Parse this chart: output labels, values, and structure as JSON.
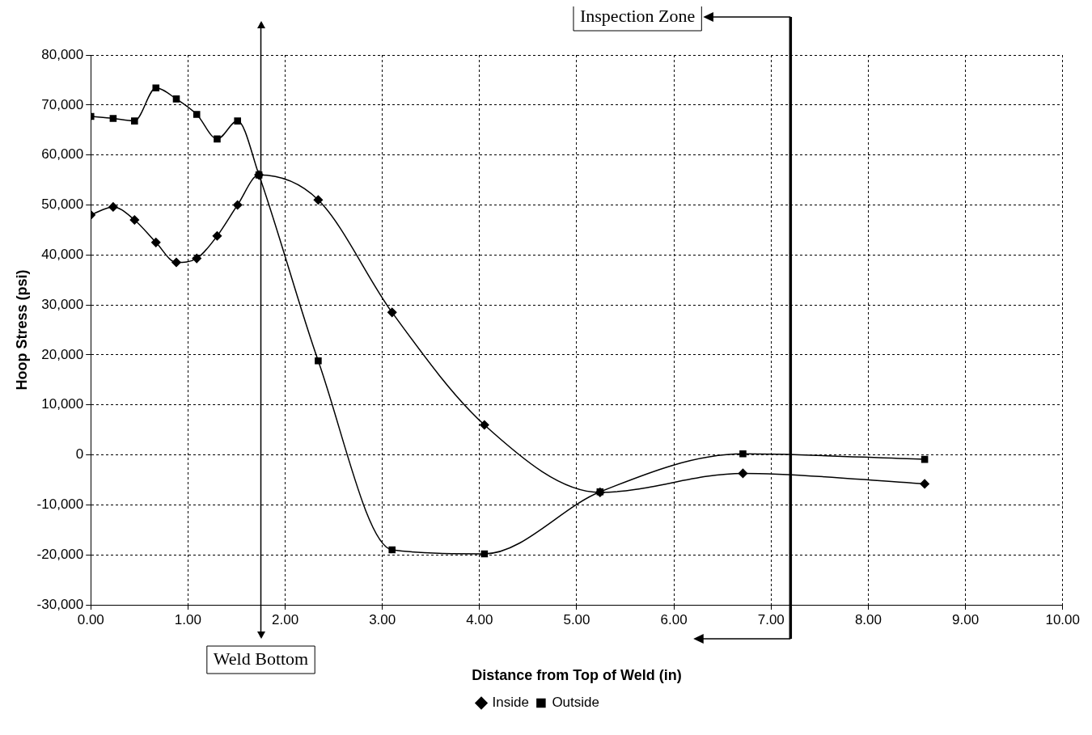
{
  "chart_data": {
    "type": "line",
    "xlabel": "Distance from Top of Weld (in)",
    "ylabel": "Hoop Stress (psi)",
    "xlim": [
      0,
      10
    ],
    "xticks": [
      {
        "value": 0,
        "label": "0.00"
      },
      {
        "value": 1,
        "label": "1.00"
      },
      {
        "value": 2,
        "label": "2.00"
      },
      {
        "value": 3,
        "label": "3.00"
      },
      {
        "value": 4,
        "label": "4.00"
      },
      {
        "value": 5,
        "label": "5.00"
      },
      {
        "value": 6,
        "label": "6.00"
      },
      {
        "value": 7,
        "label": "7.00"
      },
      {
        "value": 8,
        "label": "8.00"
      },
      {
        "value": 9,
        "label": "9.00"
      },
      {
        "value": 10,
        "label": "10.00"
      }
    ],
    "ylim": [
      -30000,
      80000
    ],
    "yticks": [
      {
        "value": -30000,
        "label": "-30,000"
      },
      {
        "value": -20000,
        "label": "-20,000"
      },
      {
        "value": -10000,
        "label": "-10,000"
      },
      {
        "value": 0,
        "label": "0"
      },
      {
        "value": 10000,
        "label": "10,000"
      },
      {
        "value": 20000,
        "label": "20,000"
      },
      {
        "value": 30000,
        "label": "30,000"
      },
      {
        "value": 40000,
        "label": "40,000"
      },
      {
        "value": 50000,
        "label": "50,000"
      },
      {
        "value": 60000,
        "label": "60,000"
      },
      {
        "value": 70000,
        "label": "70,000"
      },
      {
        "value": 80000,
        "label": "80,000"
      }
    ],
    "x": [
      0,
      0.23,
      0.45,
      0.67,
      0.88,
      1.09,
      1.3,
      1.51,
      1.73,
      2.34,
      3.1,
      4.05,
      5.24,
      6.71,
      8.58
    ],
    "series": [
      {
        "name": "Inside",
        "color": "#000000",
        "marker": "diamond",
        "values": [
          48000,
          49600,
          47000,
          42500,
          38500,
          39300,
          43800,
          50000,
          56000,
          51000,
          28500,
          6000,
          -7500,
          -3700,
          -5800
        ]
      },
      {
        "name": "Outside",
        "color": "#000000",
        "marker": "square",
        "values": [
          67700,
          67300,
          66800,
          73400,
          71200,
          68100,
          63200,
          66800,
          56000,
          18800,
          -19000,
          -19800,
          -7400,
          200,
          -900
        ]
      }
    ],
    "ref_lines": [
      {
        "axis": "x",
        "value": 1.75,
        "label": "Weld Bottom",
        "color": "#000000"
      },
      {
        "axis": "x",
        "value": 7.2,
        "label": "Inspection Zone",
        "color": "#000000"
      }
    ],
    "grid": true,
    "legend": "bottom",
    "line_style": "solid"
  }
}
